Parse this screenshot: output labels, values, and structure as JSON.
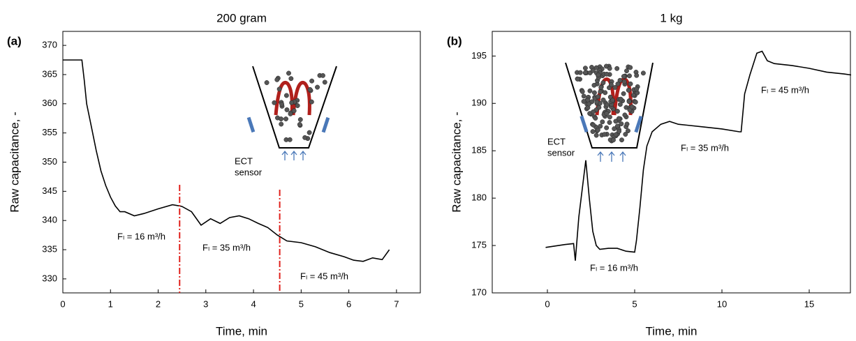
{
  "chart_data": [
    {
      "type": "line",
      "panel_label": "(a)",
      "title": "200 gram",
      "x_label": "Time, min",
      "y_label": "Raw capacitance, -",
      "x": [
        0,
        0.4,
        0.45,
        0.5,
        0.6,
        0.7,
        0.8,
        0.9,
        1.0,
        1.1,
        1.2,
        1.3,
        1.5,
        1.7,
        2.0,
        2.3,
        2.45,
        2.5,
        2.7,
        2.9,
        3.1,
        3.3,
        3.5,
        3.7,
        3.9,
        4.1,
        4.3,
        4.5,
        4.7,
        5.0,
        5.3,
        5.6,
        5.9,
        6.1,
        6.3,
        6.5,
        6.7,
        6.85
      ],
      "series": [
        {
          "color": "#000000",
          "values": [
            367.5,
            367.5,
            364,
            360,
            356,
            352,
            348.5,
            346,
            344,
            342.5,
            341.5,
            341.5,
            340.8,
            341.2,
            342,
            342.7,
            342.5,
            342.4,
            341.5,
            339.2,
            340.3,
            339.5,
            340.5,
            340.8,
            340.3,
            339.5,
            338.8,
            337.5,
            336.5,
            336.2,
            335.5,
            334.5,
            333.8,
            333.2,
            333,
            333.6,
            333.3,
            335
          ]
        }
      ],
      "vlines": [
        2.45,
        4.55
      ],
      "vline_color": "#e0201b",
      "xlim": [
        0,
        7.5
      ],
      "ylim": [
        327.6,
        372.4
      ],
      "xticks": [
        0,
        1,
        2,
        3,
        4,
        5,
        6,
        7
      ],
      "yticks": [
        330,
        335,
        340,
        345,
        350,
        355,
        360,
        365,
        370
      ],
      "annotations": [
        "Fₗ = 16 m³/h",
        "Fₗ = 35 m³/h",
        "Fₗ = 45 m³/h"
      ],
      "inset_label": [
        "ECT",
        "sensor"
      ]
    },
    {
      "type": "line",
      "panel_label": "(b)",
      "title": "1 kg",
      "x_label": "Time, min",
      "y_label": "Raw capacitance, -",
      "x": [
        -0.1,
        1.0,
        1.5,
        1.6,
        1.8,
        2.0,
        2.2,
        2.4,
        2.6,
        2.8,
        3.0,
        3.5,
        4.0,
        4.5,
        5.0,
        5.1,
        5.3,
        5.5,
        5.7,
        6.0,
        6.5,
        7.0,
        7.5,
        8,
        9,
        10,
        11,
        11.1,
        11.3,
        11.6,
        12,
        12.3,
        12.6,
        13,
        14,
        15,
        16,
        17,
        17.4
      ],
      "series": [
        {
          "color": "#000000",
          "values": [
            174.8,
            175.1,
            175.2,
            173.4,
            178,
            181,
            184,
            180,
            176.5,
            175,
            174.6,
            174.7,
            174.7,
            174.4,
            174.3,
            175.5,
            179,
            183,
            185.5,
            187,
            187.8,
            188.1,
            187.8,
            187.7,
            187.5,
            187.3,
            187.0,
            187,
            191,
            193,
            195.3,
            195.5,
            194.5,
            194.2,
            194,
            193.7,
            193.3,
            193.1,
            193.0
          ]
        }
      ],
      "xlim": [
        -3.16,
        17.36
      ],
      "ylim": [
        170,
        197.6
      ],
      "xticks": [
        0,
        5,
        10,
        15
      ],
      "yticks": [
        170,
        175,
        180,
        185,
        190,
        195
      ],
      "annotations": [
        "Fₗ = 16 m³/h",
        "Fₗ = 35 m³/h",
        "Fₗ = 45 m³/h"
      ],
      "inset_label": [
        "ECT",
        "sensor"
      ]
    }
  ]
}
